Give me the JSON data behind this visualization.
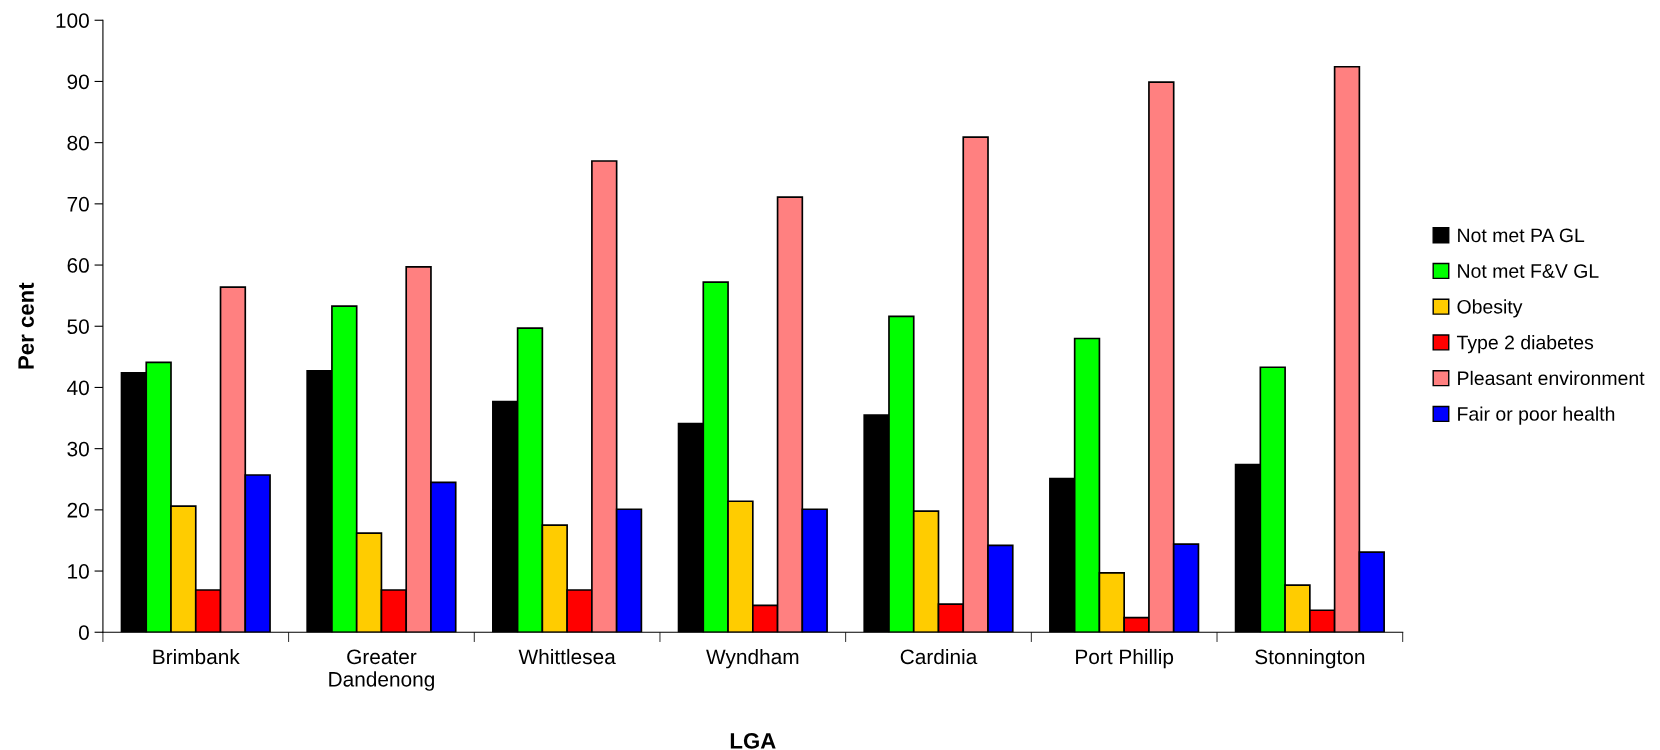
{
  "chart_data": {
    "type": "bar",
    "xlabel": "LGA",
    "ylabel": "Per cent",
    "categories": [
      "Brimbank",
      "Greater\nDandenong",
      "Whittlesea",
      "Wyndham",
      "Cardinia",
      "Port Phillip",
      "Stonnington"
    ],
    "series": [
      {
        "name": "Not met PA GL",
        "color": "#000000",
        "values": [
          42.4,
          42.7,
          37.7,
          34.1,
          35.5,
          25.1,
          27.4
        ]
      },
      {
        "name": "Not met F&V GL",
        "color": "#00ff00",
        "values": [
          44.1,
          53.3,
          49.7,
          57.2,
          51.6,
          48.0,
          43.3
        ]
      },
      {
        "name": "Obesity",
        "color": "#ffcc00",
        "values": [
          20.6,
          16.2,
          17.5,
          21.4,
          19.8,
          9.7,
          7.7
        ]
      },
      {
        "name": "Type 2 diabetes",
        "color": "#ff0000",
        "values": [
          6.9,
          6.9,
          6.9,
          4.4,
          4.6,
          2.4,
          3.6
        ]
      },
      {
        "name": "Pleasant environment",
        "color": "#ff8080",
        "values": [
          56.4,
          59.7,
          77.0,
          71.1,
          80.9,
          89.9,
          92.4
        ]
      },
      {
        "name": "Fair or poor health",
        "color": "#0000ff",
        "values": [
          25.7,
          24.5,
          20.1,
          20.1,
          14.2,
          14.4,
          13.1
        ]
      }
    ],
    "ylim": [
      0,
      100
    ],
    "yticks": [
      0,
      10,
      20,
      30,
      40,
      50,
      60,
      70,
      80,
      90,
      100
    ],
    "grid": false,
    "legend": "right"
  }
}
